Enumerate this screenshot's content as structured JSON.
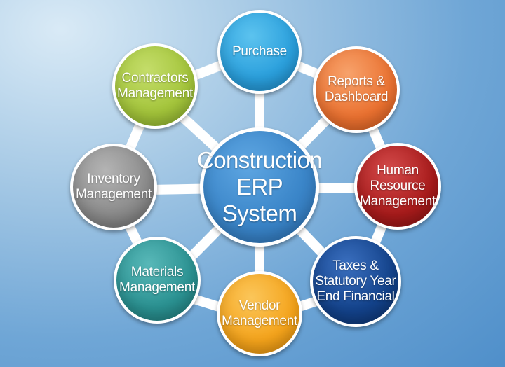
{
  "diagram": {
    "hub": {
      "lines": [
        "Construction",
        "ERP System"
      ]
    },
    "nodes": [
      {
        "id": "purchase",
        "lines": [
          "Purchase"
        ],
        "color": "#2a9fdc"
      },
      {
        "id": "reports-dashboard",
        "lines": [
          "Reports &",
          "Dashboard"
        ],
        "color": "#ea7130"
      },
      {
        "id": "human-resource-management",
        "lines": [
          "Human",
          "Resource",
          "Management"
        ],
        "color": "#a81b1b"
      },
      {
        "id": "taxes-statutory",
        "lines": [
          "Taxes &",
          "Statutory Year",
          "End Financial"
        ],
        "color": "#13428a"
      },
      {
        "id": "vendor-management",
        "lines": [
          "Vendor",
          "Management"
        ],
        "color": "#f4a31b"
      },
      {
        "id": "materials-management",
        "lines": [
          "Materials",
          "Management"
        ],
        "color": "#2a9191"
      },
      {
        "id": "inventory-management",
        "lines": [
          "Inventory",
          "Management"
        ],
        "color": "#8a8a8a"
      },
      {
        "id": "contractors-management",
        "lines": [
          "Contractors",
          "Management"
        ],
        "color": "#a3c43a"
      }
    ],
    "hub_color": "#3b86c9"
  }
}
